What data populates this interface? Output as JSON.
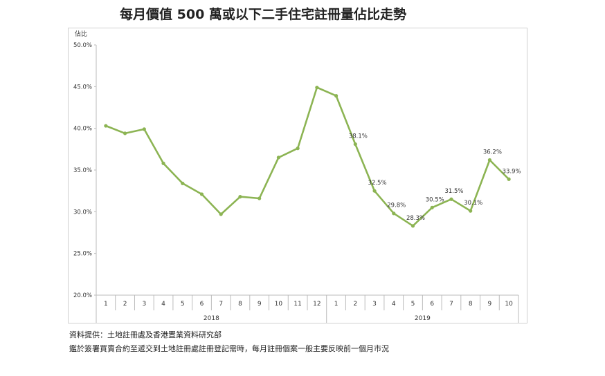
{
  "chart_data": {
    "type": "line",
    "title": "每月價值 500 萬或以下二手住宅註冊量佔比走勢",
    "ylabel": "佔比",
    "ylim": [
      20,
      50
    ],
    "yticks": [
      "20.0%",
      "25.0%",
      "30.0%",
      "35.0%",
      "40.0%",
      "45.0%",
      "50.0%"
    ],
    "grid": false,
    "line_color": "#8cb453",
    "categories": [
      "1",
      "2",
      "3",
      "4",
      "5",
      "6",
      "7",
      "8",
      "9",
      "10",
      "11",
      "12",
      "1",
      "2",
      "3",
      "4",
      "5",
      "6",
      "7",
      "8",
      "9",
      "10"
    ],
    "groups": [
      {
        "label": "2018",
        "count": 12
      },
      {
        "label": "2019",
        "count": 10
      }
    ],
    "series": [
      {
        "name": "佔比",
        "values": [
          40.3,
          39.4,
          39.9,
          35.8,
          33.4,
          32.1,
          29.7,
          31.8,
          31.6,
          36.5,
          37.6,
          44.9,
          43.9,
          38.1,
          32.5,
          29.8,
          28.3,
          30.5,
          31.5,
          30.1,
          36.2,
          33.9
        ]
      }
    ],
    "data_labels": [
      "",
      "",
      "",
      "",
      "",
      "",
      "",
      "",
      "",
      "",
      "",
      "",
      "",
      "38.1%",
      "32.5%",
      "29.8%",
      "28.3%",
      "30.5%",
      "31.5%",
      "30.1%",
      "36.2%",
      "33.9%"
    ]
  },
  "notes": {
    "source": "資料提供：土地註冊處及香港置業資料研究部",
    "footnote": "鑑於簽署買賣合約至遞交到土地註冊處註冊登記需時，每月註冊個案一般主要反映前一個月市況"
  }
}
